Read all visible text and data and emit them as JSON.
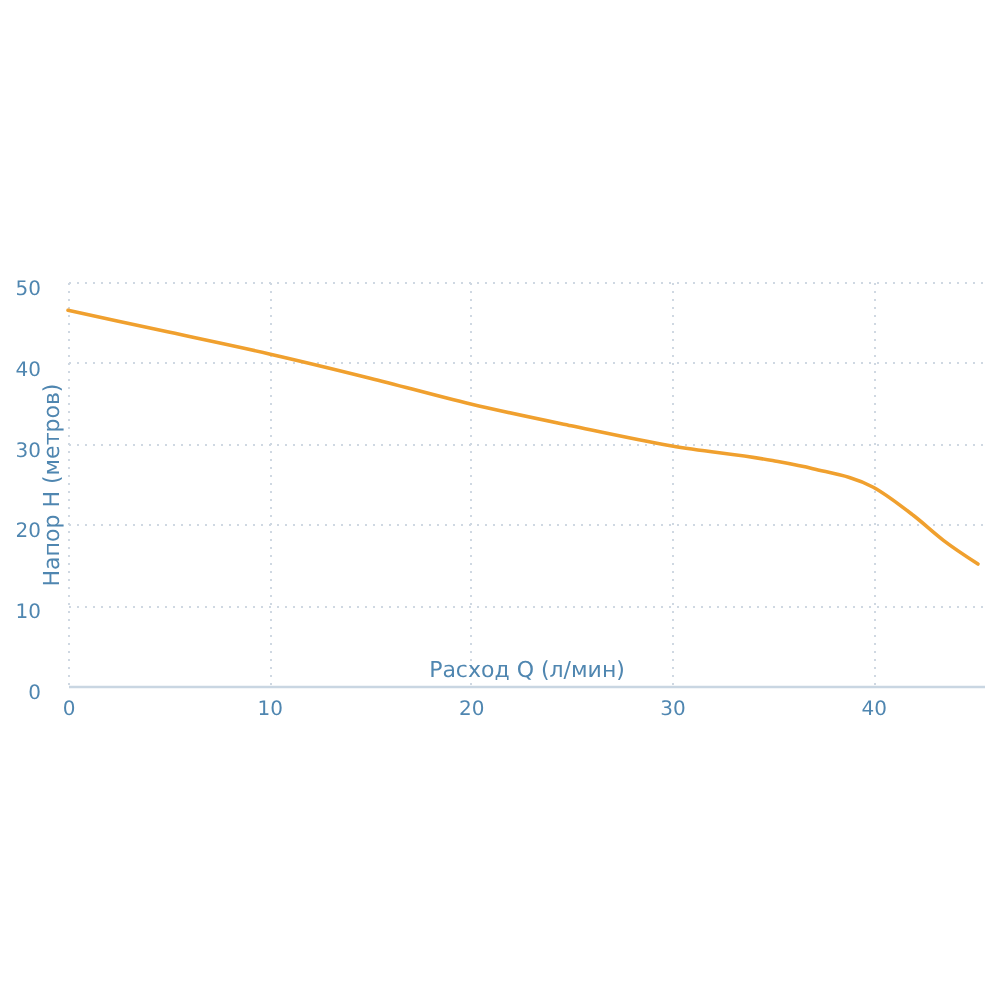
{
  "chart_data": {
    "type": "line",
    "xlabel": "Расход Q (л/мин)",
    "ylabel": "Напор Н (метров)",
    "x": [
      0,
      5,
      10,
      15,
      20,
      25,
      30,
      35,
      37,
      40,
      42,
      43.5,
      45.2
    ],
    "series": [
      {
        "color": "#f0a02e",
        "values": [
          46.5,
          43.8,
          41.1,
          38.1,
          34.9,
          32.2,
          29.7,
          27.9,
          26.9,
          24.6,
          21.1,
          18.0,
          15.1
        ]
      }
    ],
    "xlim": [
      0,
      45.5
    ],
    "ylim": [
      0,
      50
    ],
    "xticks": [
      0,
      10,
      20,
      30,
      40
    ],
    "yticks": [
      0,
      10,
      20,
      30,
      40,
      50
    ],
    "grid": true
  }
}
